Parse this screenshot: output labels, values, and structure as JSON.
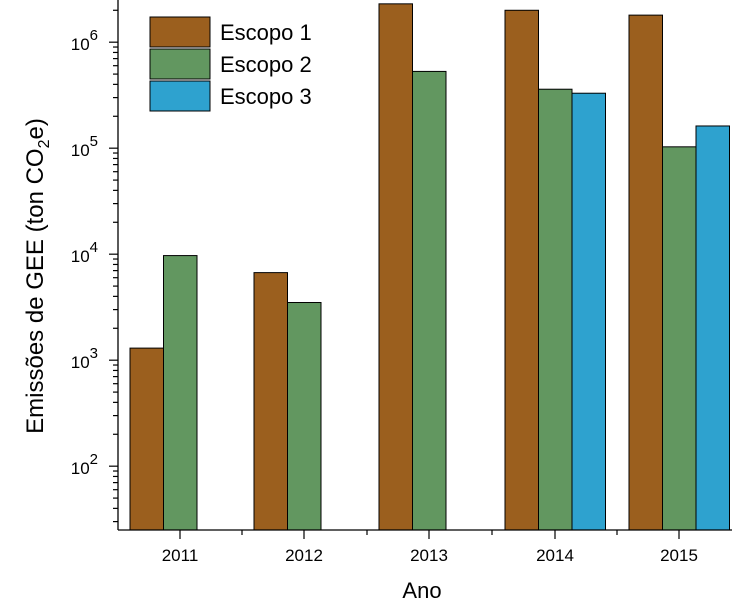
{
  "chart_data": {
    "type": "bar",
    "title": "",
    "xlabel": "Ano",
    "ylabel_parts": {
      "pre": "Emissões de GEE (ton CO",
      "sub": "2",
      "post": "e)"
    },
    "y_scale": "log",
    "ylim": [
      25,
      2500000
    ],
    "y_ticks": [
      {
        "value": 100,
        "base": "10",
        "exp": "2"
      },
      {
        "value": 1000,
        "base": "10",
        "exp": "3"
      },
      {
        "value": 10000,
        "base": "10",
        "exp": "4"
      },
      {
        "value": 100000,
        "base": "10",
        "exp": "5"
      },
      {
        "value": 1000000,
        "base": "10",
        "exp": "6"
      }
    ],
    "categories": [
      "2011",
      "2012",
      "2013",
      "2014",
      "2015"
    ],
    "series": [
      {
        "name": "Escopo 1",
        "color": "#9B5F1E",
        "values": [
          1300,
          6700,
          2300000,
          2000000,
          1800000
        ]
      },
      {
        "name": "Escopo 2",
        "color": "#629760",
        "values": [
          9700,
          3500,
          530000,
          360000,
          103000
        ]
      },
      {
        "name": "Escopo 3",
        "color": "#2EA2CF",
        "values": [
          null,
          null,
          null,
          330000,
          162000
        ]
      }
    ],
    "legend": {
      "position": "top-left"
    },
    "grid": false
  }
}
